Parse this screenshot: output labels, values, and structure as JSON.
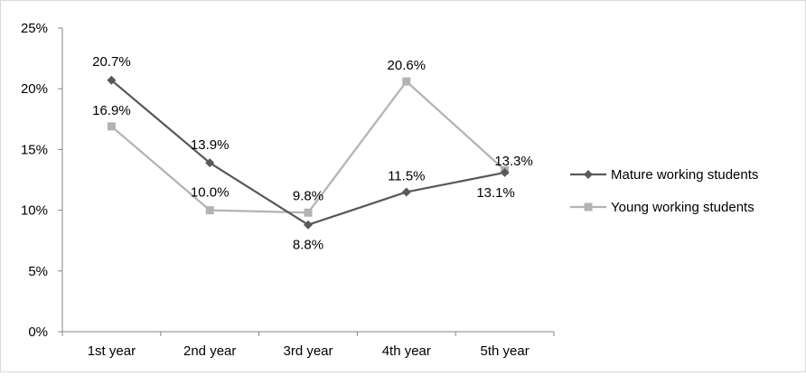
{
  "chart_data": {
    "type": "line",
    "title": "",
    "xlabel": "",
    "ylabel": "",
    "categories": [
      "1st year",
      "2nd year",
      "3rd year",
      "4th year",
      "5th year"
    ],
    "ylim": [
      0,
      25
    ],
    "yticks": [
      0,
      5,
      10,
      15,
      20,
      25
    ],
    "ytick_labels": [
      "0%",
      "5%",
      "10%",
      "15%",
      "20%",
      "25%"
    ],
    "grid": false,
    "legend_position": "right",
    "series": [
      {
        "name": "Mature working students",
        "values": [
          20.7,
          13.9,
          8.8,
          11.5,
          13.1
        ],
        "labels": [
          "20.7%",
          "13.9%",
          "8.8%",
          "11.5%",
          "13.1%"
        ],
        "color": "#595959",
        "marker": "diamond"
      },
      {
        "name": "Young working students",
        "values": [
          16.9,
          10.0,
          9.8,
          20.6,
          13.3
        ],
        "labels": [
          "16.9%",
          "10.0%",
          "9.8%",
          "20.6%",
          "13.3%"
        ],
        "color": "#b3b3b3",
        "marker": "square"
      }
    ]
  }
}
